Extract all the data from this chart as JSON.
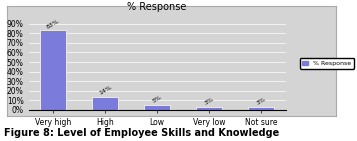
{
  "categories": [
    "Very high",
    "High",
    "Low",
    "Very low",
    "Not sure"
  ],
  "values": [
    83,
    14,
    5,
    3,
    3
  ],
  "bar_color": "#7b7bdb",
  "title": "% Response",
  "ylabel": "",
  "ylim": [
    0,
    100
  ],
  "yticks": [
    0,
    10,
    20,
    30,
    40,
    50,
    60,
    70,
    80,
    90
  ],
  "ytick_labels": [
    "0%",
    "10%",
    "20%",
    "30%",
    "40%",
    "50%",
    "60%",
    "70%",
    "80%",
    "90%"
  ],
  "legend_label": "% Response",
  "caption": "Figure 8: Level of Employee Skills and Knowledge",
  "bg_color": "#d4d4d4",
  "plot_bg_color": "#d4d4d4",
  "data_labels": [
    "83%",
    "14%",
    "5%",
    "3%",
    "3%"
  ],
  "title_fontsize": 7,
  "tick_fontsize": 5.5,
  "caption_fontsize": 7
}
